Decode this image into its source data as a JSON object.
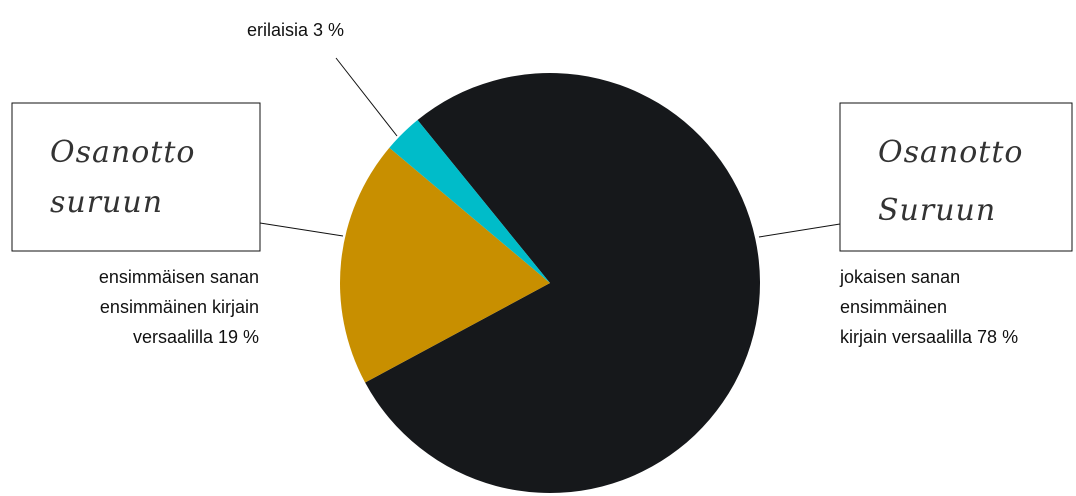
{
  "chart_data": {
    "type": "pie",
    "slices": [
      {
        "label_lines": [
          "jokaisen sanan",
          "ensimmäinen",
          "kirjain versaalilla 78 %"
        ],
        "value": 78,
        "color": "#16181b",
        "example_lines": [
          "Osanotto",
          "Suruun"
        ]
      },
      {
        "label_lines": [
          "ensimmäisen sanan",
          "ensimmäinen kirjain",
          "versaalilla 19 %"
        ],
        "value": 19,
        "color": "#c88f00",
        "example_lines": [
          "Osanotto",
          "suruun"
        ]
      },
      {
        "label_lines": [
          "erilaisia 3 %"
        ],
        "value": 3,
        "color": "#00bcc9"
      }
    ]
  }
}
